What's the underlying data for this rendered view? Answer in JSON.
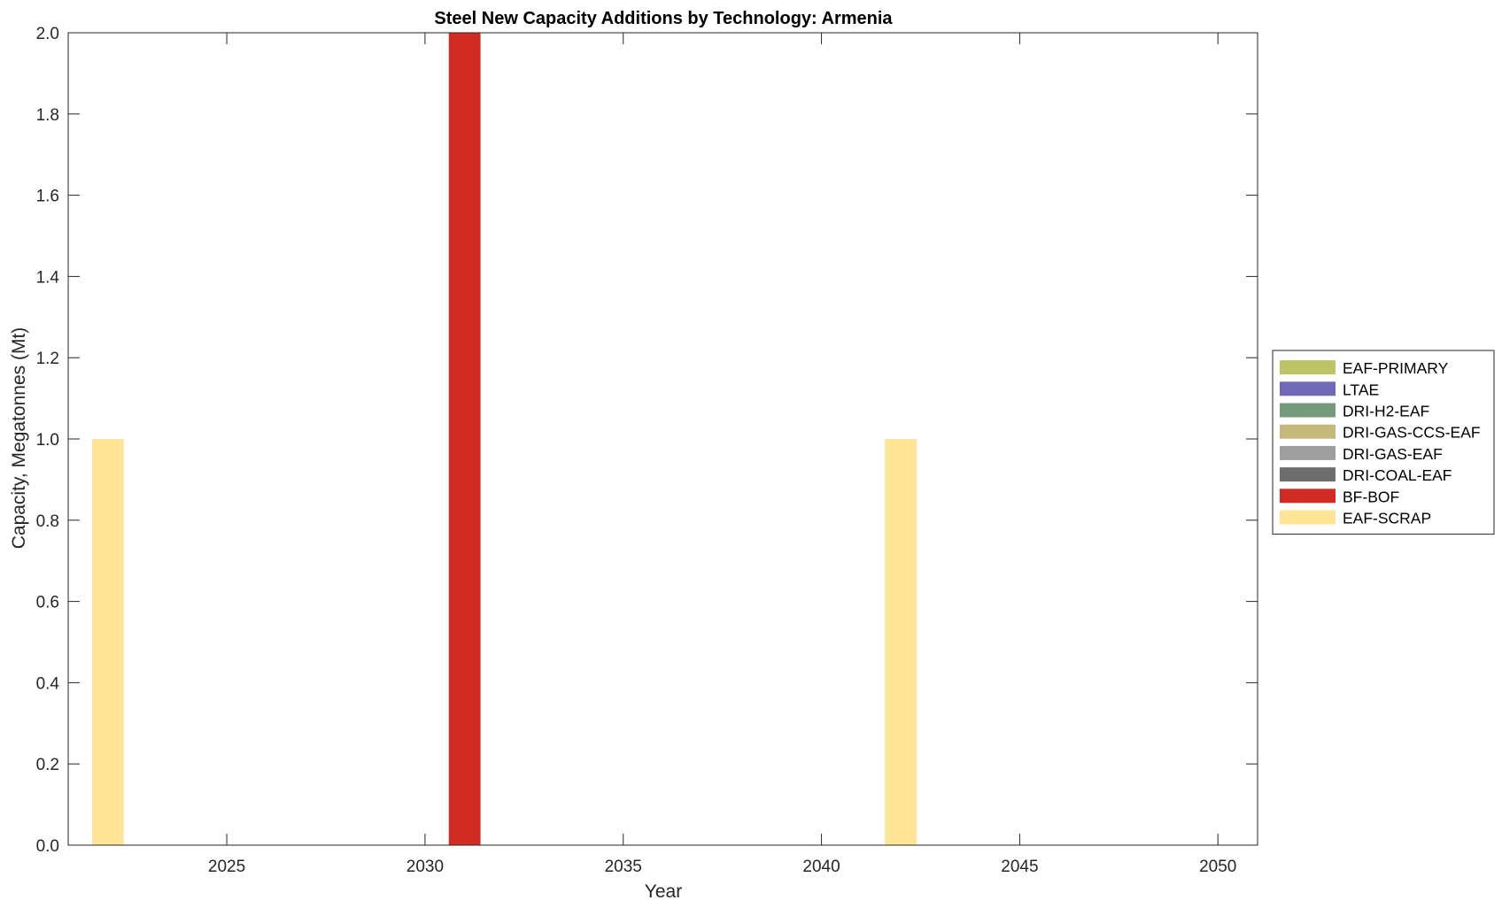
{
  "chart_data": {
    "type": "bar",
    "stacked": true,
    "title": "Steel New Capacity Additions by Technology: Armenia",
    "xlabel": "Year",
    "ylabel": "Capacity, Megatonnes (Mt)",
    "xlim": [
      2021,
      2051
    ],
    "ylim": [
      0,
      2
    ],
    "xticks": [
      2025,
      2030,
      2035,
      2040,
      2045,
      2050
    ],
    "xtick_labels": [
      "2025",
      "2030",
      "2035",
      "2040",
      "2045",
      "2050"
    ],
    "yticks": [
      0,
      0.2,
      0.4,
      0.6,
      0.8,
      1.0,
      1.2,
      1.4,
      1.6,
      1.8,
      2.0
    ],
    "ytick_labels": [
      "0.0",
      "0.2",
      "0.4",
      "0.6",
      "0.8",
      "1.0",
      "1.2",
      "1.4",
      "1.6",
      "1.8",
      "2.0"
    ],
    "grid": false,
    "legend_position": "right",
    "x": [
      2022,
      2031,
      2042
    ],
    "series": [
      {
        "name": "EAF-PRIMARY",
        "color": "#bcc466",
        "values": [
          0,
          0,
          0
        ]
      },
      {
        "name": "LTAE",
        "color": "#6f69b6",
        "values": [
          0,
          0,
          0
        ]
      },
      {
        "name": "DRI-H2-EAF",
        "color": "#769a7c",
        "values": [
          0,
          0,
          0
        ]
      },
      {
        "name": "DRI-GAS-CCS-EAF",
        "color": "#c4b97b",
        "values": [
          0,
          0,
          0
        ]
      },
      {
        "name": "DRI-GAS-EAF",
        "color": "#9e9e9e",
        "values": [
          0,
          0,
          0
        ]
      },
      {
        "name": "DRI-COAL-EAF",
        "color": "#6e6e6e",
        "values": [
          0,
          0,
          0
        ]
      },
      {
        "name": "BF-BOF",
        "color": "#d22b23",
        "values": [
          0,
          2.0,
          0
        ]
      },
      {
        "name": "EAF-SCRAP",
        "color": "#fde595",
        "values": [
          1.0,
          0,
          1.0
        ]
      }
    ]
  }
}
